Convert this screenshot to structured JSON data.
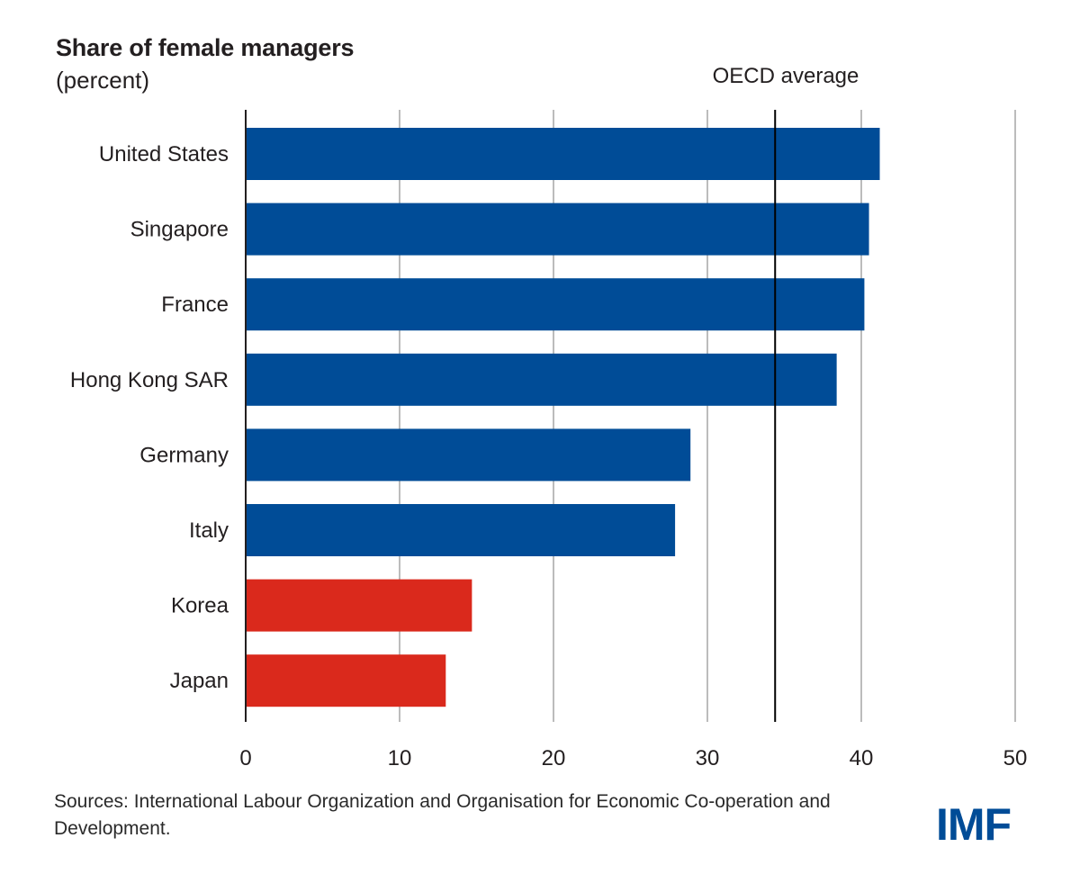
{
  "chart_data": {
    "type": "bar",
    "orientation": "horizontal",
    "title": "Share of female managers",
    "subtitle": "(percent)",
    "categories": [
      "United States",
      "Singapore",
      "France",
      "Hong Kong SAR",
      "Germany",
      "Italy",
      "Korea",
      "Japan"
    ],
    "values": [
      41.2,
      40.5,
      40.2,
      38.4,
      28.9,
      27.9,
      14.7,
      13.0
    ],
    "bar_colors": [
      "#004c97",
      "#004c97",
      "#004c97",
      "#004c97",
      "#004c97",
      "#004c97",
      "#da291c",
      "#da291c"
    ],
    "xlim": [
      0,
      50
    ],
    "xticks": [
      0,
      10,
      20,
      30,
      40,
      50
    ],
    "grid": true,
    "reference_line": {
      "label": "OECD average",
      "value": 34.4
    }
  },
  "source_note": "Sources: International Labour Organization and Organisation for Economic Co-operation and Development.",
  "logo_text": "IMF",
  "colors": {
    "primary": "#004c97",
    "highlight": "#da291c",
    "grid": "#bcbcbc",
    "axis": "#231f20"
  }
}
